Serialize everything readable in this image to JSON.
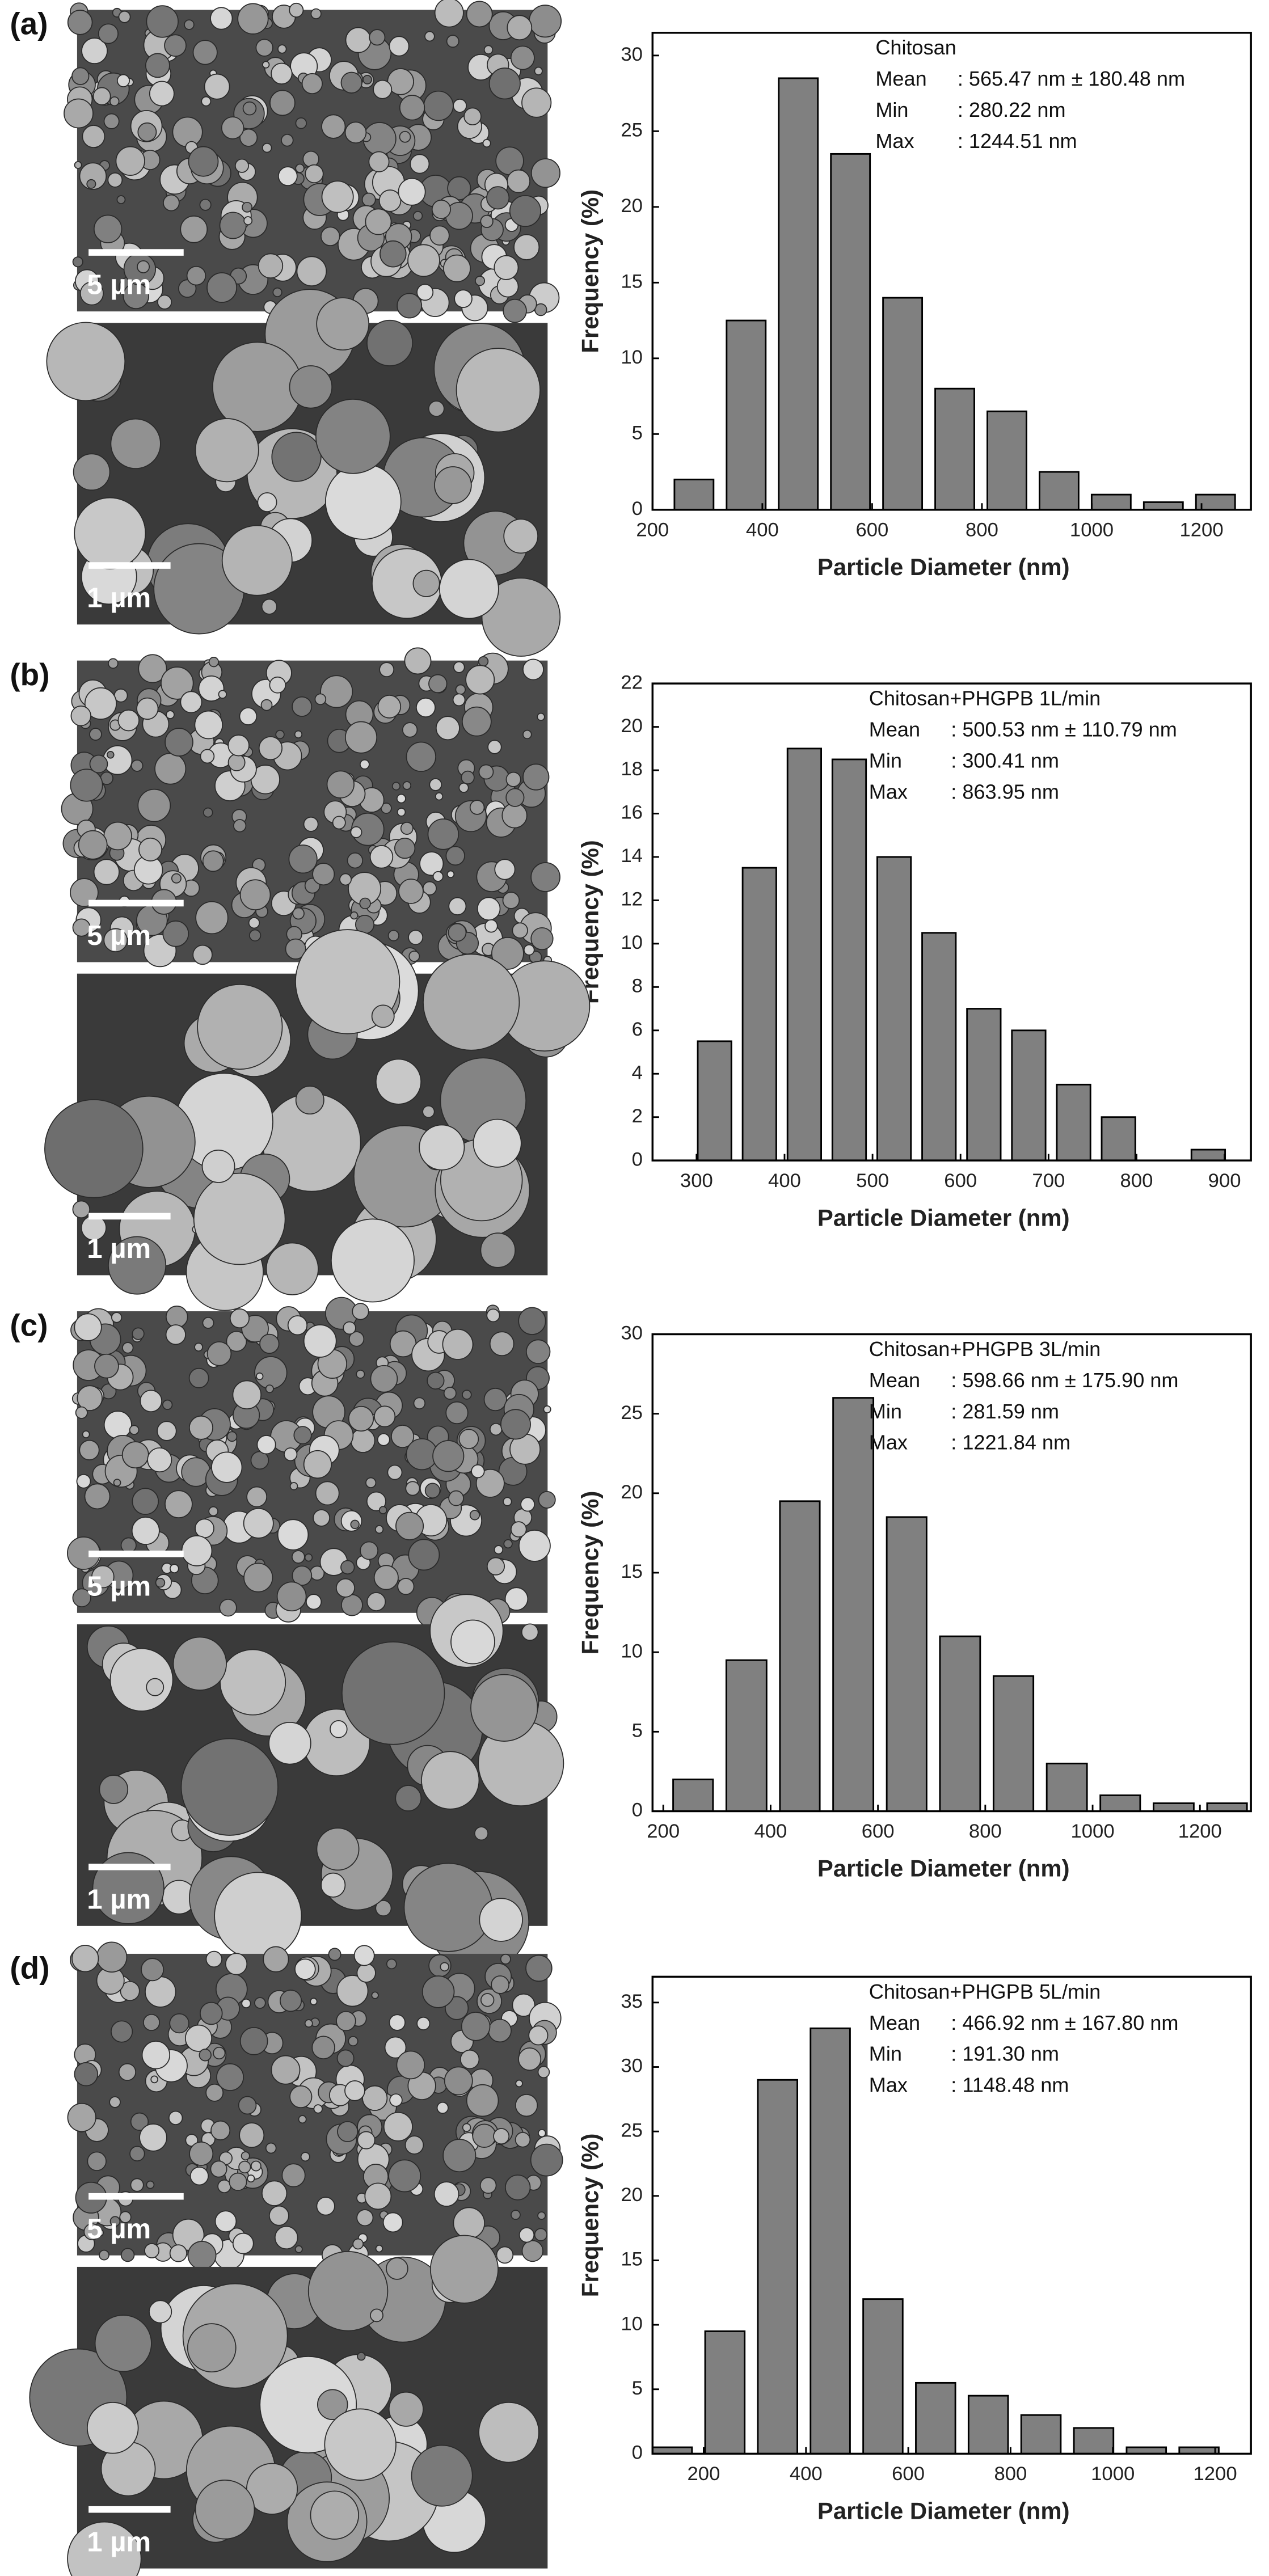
{
  "chart_data": [
    {
      "type": "histogram",
      "panel_label": "(a)",
      "sem_scale_labels": [
        "5 µm",
        "1 µm"
      ],
      "annotation_title": "Chitosan",
      "stats": [
        [
          "Mean",
          ": 565.47 nm ± 180.48 nm"
        ],
        [
          "Min",
          ": 280.22 nm"
        ],
        [
          "Max",
          ": 1244.51 nm"
        ]
      ],
      "xlabel": "Particle Diameter (nm)",
      "ylabel": "Frequency (%)",
      "bins": [
        228,
        323,
        418,
        513,
        608,
        703,
        798,
        893,
        988,
        1083,
        1178,
        1273
      ],
      "values": [
        2,
        12.5,
        28.5,
        23.5,
        14,
        8,
        6.5,
        2.5,
        1,
        0.5,
        1
      ],
      "color": "#808080",
      "xlim": [
        200,
        1290
      ],
      "xticks": [
        200,
        400,
        600,
        800,
        1000,
        1200
      ],
      "ylim": [
        0,
        31.5
      ],
      "yticks": [
        0,
        5,
        10,
        15,
        20,
        25,
        30
      ]
    },
    {
      "type": "histogram",
      "panel_label": "(b)",
      "sem_scale_labels": [
        "5 µm",
        "1 µm"
      ],
      "annotation_title": "Chitosan+PHGPB 1L/min",
      "stats": [
        [
          "Mean",
          ": 500.53 nm ± 110.79 nm"
        ],
        [
          "Min",
          ": 300.41 nm"
        ],
        [
          "Max",
          ": 863.95 nm"
        ]
      ],
      "xlabel": "Particle Diameter (nm)",
      "ylabel": "Frequency (%)",
      "bins": [
        295,
        346,
        397,
        448,
        499,
        550,
        601,
        652,
        703,
        754,
        805,
        856,
        907
      ],
      "values": [
        5.5,
        13.5,
        19,
        18.5,
        14,
        10.5,
        7,
        6,
        3.5,
        2,
        0,
        0.5
      ],
      "color": "#808080",
      "xlim": [
        250,
        930
      ],
      "xticks": [
        300,
        400,
        500,
        600,
        700,
        800,
        900
      ],
      "ylim": [
        0,
        22
      ],
      "yticks": [
        0,
        2,
        4,
        6,
        8,
        10,
        12,
        14,
        16,
        18,
        20,
        22
      ]
    },
    {
      "type": "histogram",
      "panel_label": "(c)",
      "sem_scale_labels": [
        "5 µm",
        "1 µm"
      ],
      "annotation_title": "Chitosan+PHGPB 3L/min",
      "stats": [
        [
          "Mean",
          ": 598.66 nm ± 175.90 nm"
        ],
        [
          "Min",
          ": 281.59 nm"
        ],
        [
          "Max",
          ": 1221.84 nm"
        ]
      ],
      "xlabel": "Particle Diameter (nm)",
      "ylabel": "Frequency (%)",
      "bins": [
        206,
        305,
        405,
        504,
        604,
        703,
        803,
        902,
        1002,
        1101,
        1201,
        1300
      ],
      "values": [
        2,
        9.5,
        19.5,
        26,
        18.5,
        11,
        8.5,
        3,
        1,
        0.5,
        0.5
      ],
      "color": "#808080",
      "xlim": [
        180,
        1295
      ],
      "xticks": [
        200,
        400,
        600,
        800,
        1000,
        1200
      ],
      "ylim": [
        0,
        30
      ],
      "yticks": [
        0,
        5,
        10,
        15,
        20,
        25,
        30
      ]
    },
    {
      "type": "histogram",
      "panel_label": "(d)",
      "sem_scale_labels": [
        "5 µm",
        "1 µm"
      ],
      "annotation_title": "Chitosan+PHGPB 5L/min",
      "stats": [
        [
          "Mean",
          ": 466.92 nm ± 167.80 nm"
        ],
        [
          "Min",
          ": 191.30 nm"
        ],
        [
          "Max",
          ": 1148.48 nm"
        ]
      ],
      "xlabel": "Particle Diameter (nm)",
      "ylabel": "Frequency (%)",
      "bins": [
        87,
        190,
        293,
        396,
        499,
        602,
        705,
        808,
        911,
        1014,
        1117,
        1220
      ],
      "values": [
        0.5,
        9.5,
        29,
        33,
        12,
        5.5,
        4.5,
        3,
        2,
        0.5,
        0.5
      ],
      "color": "#808080",
      "xlim": [
        100,
        1270
      ],
      "xticks": [
        200,
        400,
        600,
        800,
        1000,
        1200
      ],
      "ylim": [
        0,
        37
      ],
      "yticks": [
        0,
        5,
        10,
        15,
        20,
        25,
        30,
        35
      ]
    }
  ]
}
